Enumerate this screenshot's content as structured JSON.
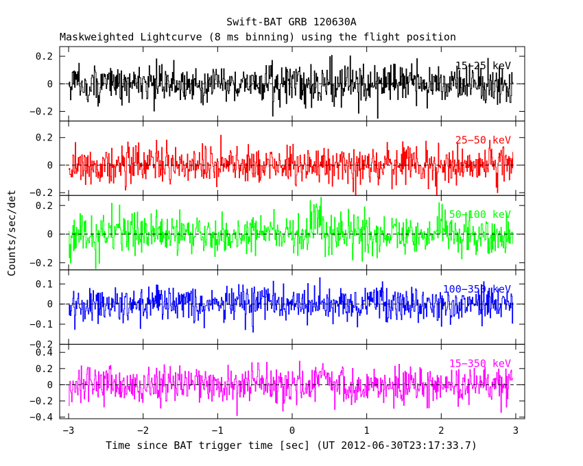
{
  "chart_data": {
    "type": "line",
    "title": "Swift-BAT GRB 120630A",
    "subtitle": "Maskweighted Lightcurve (8 ms binning) using the flight position",
    "xlabel": "Time since BAT trigger time [sec] (UT 2012-06-30T23:17:33.7)",
    "ylabel": "Counts/sec/det",
    "xlim": [
      -3.12,
      3.12
    ],
    "x_ticks": [
      -3,
      -2,
      -1,
      0,
      1,
      2,
      3
    ],
    "x_tick_labels": [
      "−3",
      "−2",
      "−1",
      "0",
      "1",
      "2",
      "3"
    ],
    "data_x_range": [
      -3.0,
      2.96
    ],
    "bin_size_sec": 0.008,
    "grid": false,
    "zero_line": "dashed",
    "series": [
      {
        "name": "15−25 keV",
        "color": "#000000",
        "ylim": [
          -0.27,
          0.27
        ],
        "y_ticks": [
          -0.2,
          0,
          0.2
        ],
        "y_tick_labels": [
          "−0.2",
          "0",
          "0.2"
        ],
        "typical_amplitude": 0.07,
        "peak_amplitude": 0.25,
        "bursts": []
      },
      {
        "name": "25−50 keV",
        "color": "#ff0000",
        "ylim": [
          -0.22,
          0.32
        ],
        "y_ticks": [
          -0.2,
          0,
          0.2
        ],
        "y_tick_labels": [
          "−0.2",
          "0",
          "0.2"
        ],
        "typical_amplitude": 0.07,
        "peak_amplitude": 0.26,
        "bursts": []
      },
      {
        "name": "50−100 keV",
        "color": "#00ff00",
        "ylim": [
          -0.25,
          0.27
        ],
        "y_ticks": [
          -0.2,
          0,
          0.2
        ],
        "y_tick_labels": [
          "−0.2",
          "0",
          "0.2"
        ],
        "typical_amplitude": 0.07,
        "peak_amplitude": 0.27,
        "bursts": [
          {
            "t_start": 0.2,
            "t_end": 0.5,
            "level": 0.09
          }
        ]
      },
      {
        "name": "100−350 keV",
        "color": "#0000ff",
        "ylim": [
          -0.2,
          0.17
        ],
        "y_ticks": [
          -0.2,
          -0.1,
          0,
          0.1
        ],
        "y_tick_labels": [
          "−0.2",
          "−0.1",
          "0",
          "0.1"
        ],
        "typical_amplitude": 0.045,
        "peak_amplitude": 0.16,
        "bursts": []
      },
      {
        "name": "15−350 keV",
        "color": "#ff00ff",
        "ylim": [
          -0.42,
          0.5
        ],
        "y_ticks": [
          -0.4,
          -0.2,
          0,
          0.2,
          0.4
        ],
        "y_tick_labels": [
          "−0.4",
          "−0.2",
          "0",
          "0.2",
          "0.4"
        ],
        "typical_amplitude": 0.12,
        "peak_amplitude": 0.48,
        "bursts": [
          {
            "t_start": 0.25,
            "t_end": 0.5,
            "level": 0.15
          }
        ]
      }
    ]
  }
}
